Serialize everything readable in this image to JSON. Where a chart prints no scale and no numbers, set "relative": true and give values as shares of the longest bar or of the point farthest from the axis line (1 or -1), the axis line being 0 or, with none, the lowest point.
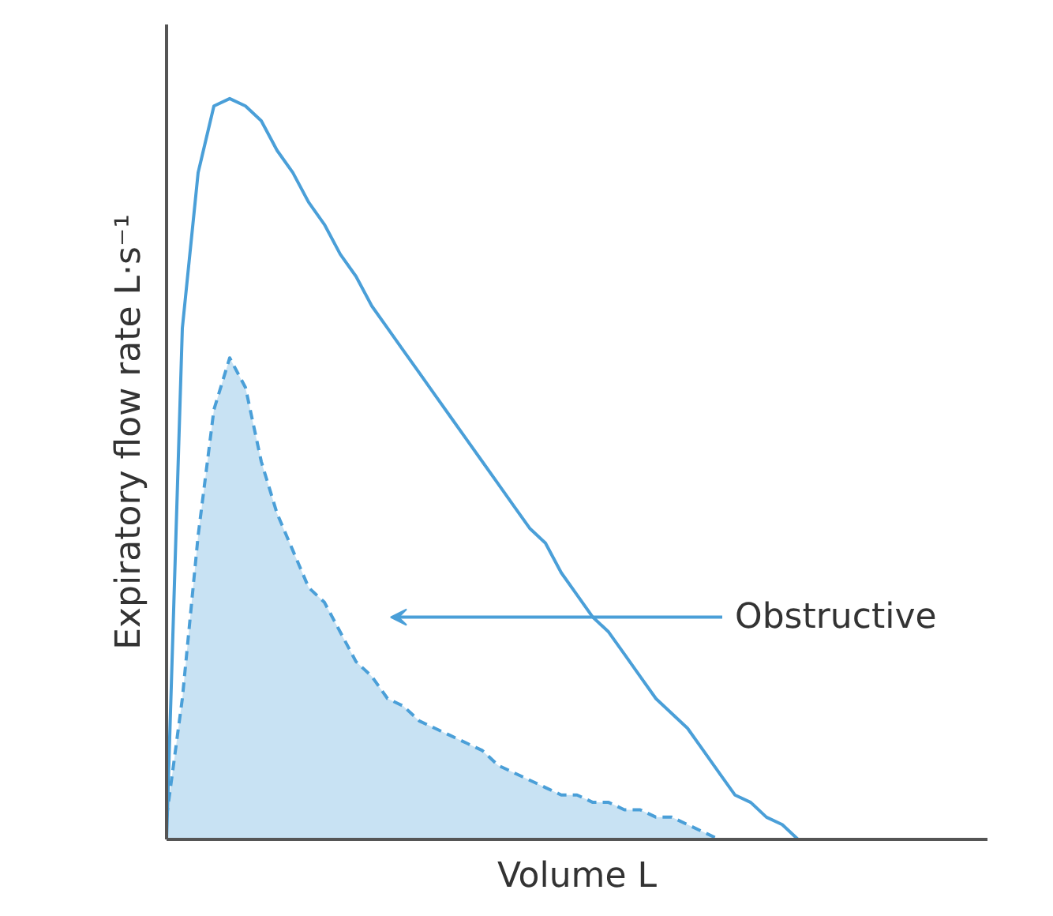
{
  "chart_data": {
    "type": "line",
    "relative": true,
    "xlabel": "Volume L",
    "ylabel": "Expiratory flow rate L·s⁻¹",
    "grid": false,
    "tick_labels": false,
    "categories": [
      null,
      null,
      null,
      null,
      null,
      null,
      null,
      null,
      null,
      null,
      null,
      null,
      null,
      null,
      null,
      null,
      null,
      null,
      null,
      null,
      null,
      null,
      null,
      null,
      null,
      null,
      null,
      null,
      null,
      null,
      null,
      null,
      null,
      null,
      null,
      null,
      null,
      null,
      null,
      null,
      null
    ],
    "series": [
      {
        "color": "#4a9fd8",
        "line_style": "solid",
        "values": [
          0,
          0.69,
          0.9,
          0.99,
          1.0,
          0.99,
          0.97,
          0.93,
          0.9,
          0.86,
          0.83,
          0.79,
          0.76,
          0.72,
          0.69,
          0.66,
          0.63,
          0.6,
          0.57,
          0.54,
          0.51,
          0.48,
          0.45,
          0.42,
          0.4,
          0.36,
          0.33,
          0.3,
          0.28,
          0.25,
          0.22,
          0.19,
          0.17,
          0.15,
          0.12,
          0.09,
          0.06,
          0.05,
          0.03,
          0.02,
          0
        ]
      },
      {
        "type": "area",
        "color": "#4a9fd8",
        "line_style": "dashed",
        "values": [
          0.03,
          0.19,
          0.41,
          0.58,
          0.65,
          0.61,
          0.51,
          0.44,
          0.39,
          0.34,
          0.32,
          0.28,
          0.24,
          0.22,
          0.19,
          0.18,
          0.16,
          0.15,
          0.14,
          0.13,
          0.12,
          0.1,
          0.09,
          0.08,
          0.07,
          0.06,
          0.06,
          0.05,
          0.05,
          0.04,
          0.04,
          0.03,
          0.03,
          0.02,
          0.01,
          0,
          null,
          null,
          null,
          null,
          null
        ]
      }
    ],
    "annotations": [
      "Obstructive"
    ]
  }
}
